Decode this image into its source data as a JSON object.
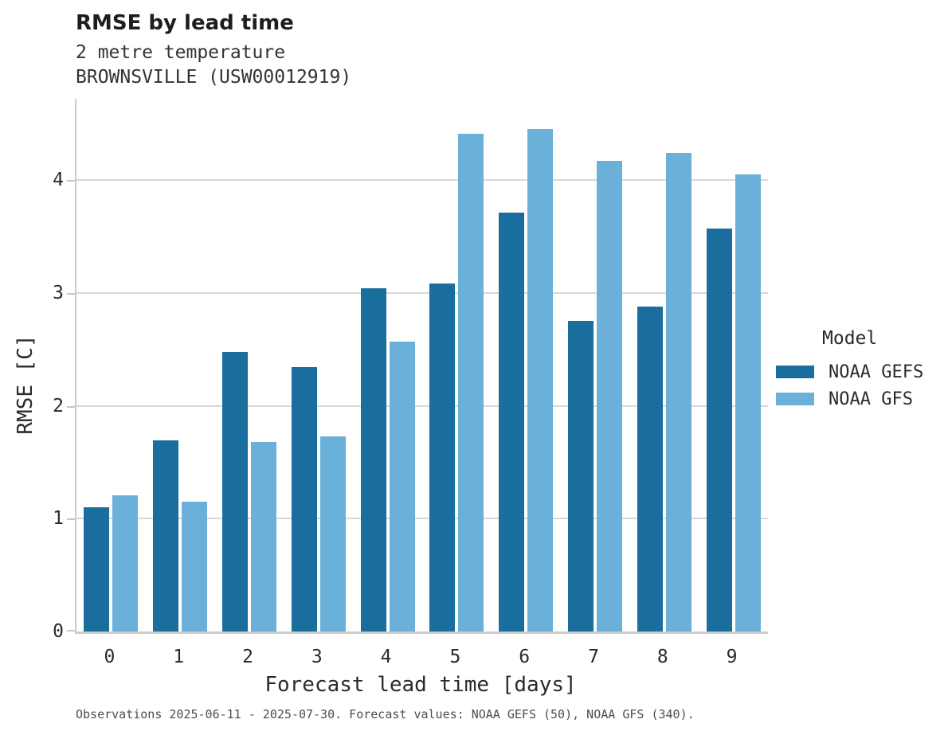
{
  "header": {
    "title": "RMSE by lead time",
    "subtitle_line1": "2 metre temperature",
    "subtitle_line2": "BROWNSVILLE (USW00012919)"
  },
  "chart_data": {
    "type": "bar",
    "title": "RMSE by lead time",
    "subtitle": [
      "2 metre temperature",
      "BROWNSVILLE (USW00012919)"
    ],
    "categories": [
      "0",
      "1",
      "2",
      "3",
      "4",
      "5",
      "6",
      "7",
      "8",
      "9"
    ],
    "series": [
      {
        "name": "NOAA GEFS",
        "key": "noaa-gefs",
        "color": "#1A6E9E",
        "values": [
          1.1,
          1.69,
          2.48,
          2.34,
          3.04,
          3.08,
          3.71,
          2.75,
          2.88,
          3.57
        ]
      },
      {
        "name": "NOAA GFS",
        "key": "noaa-gfs",
        "color": "#6BB0D8",
        "values": [
          1.21,
          1.15,
          1.68,
          1.73,
          2.57,
          4.41,
          4.45,
          4.17,
          4.24,
          4.05
        ]
      }
    ],
    "xlabel": "Forecast lead time [days]",
    "ylabel": "RMSE [C]",
    "ylim": [
      0,
      4.72
    ],
    "yticks": [
      0,
      1,
      2,
      3,
      4
    ],
    "grid": true,
    "legend_title": "Model",
    "legend_position": "right"
  },
  "legend": {
    "title": "Model"
  },
  "footer": {
    "caption": "Observations 2025-06-11 - 2025-07-30. Forecast values: NOAA GEFS (50), NOAA GFS (340)."
  }
}
